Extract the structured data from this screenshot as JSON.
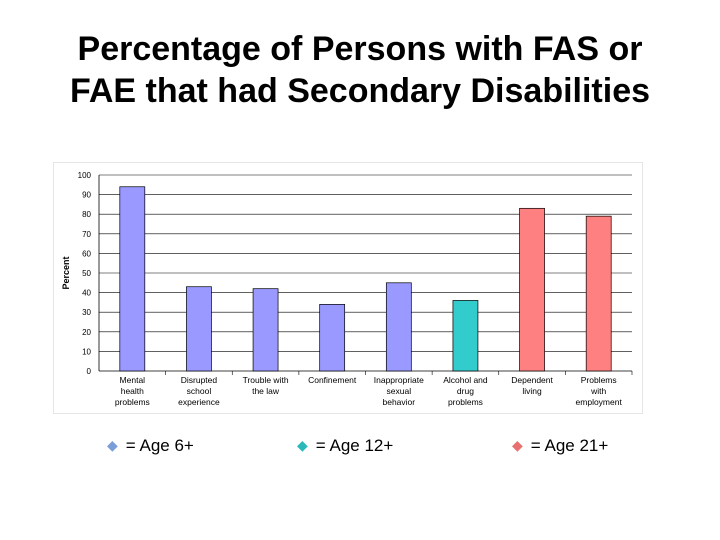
{
  "slide": {
    "title_line1": "Percentage of Persons with FAS or",
    "title_line2": "FAE that had Secondary Disabilities"
  },
  "chart_data": {
    "type": "bar",
    "title": "",
    "xlabel": "",
    "ylabel": "Percent",
    "ylim": [
      0,
      100
    ],
    "yticks": [
      0,
      10,
      20,
      30,
      40,
      50,
      60,
      70,
      80,
      90,
      100
    ],
    "grid": true,
    "categories": [
      [
        "Mental",
        "health",
        "problems"
      ],
      [
        "Disrupted",
        "school",
        "experience"
      ],
      [
        "Trouble with",
        "the law"
      ],
      [
        "Confinement"
      ],
      [
        "Inappropriate",
        "sexual",
        "behavior"
      ],
      [
        "Alcohol and",
        "drug",
        "problems"
      ],
      [
        "Dependent",
        "living"
      ],
      [
        "Problems",
        "with",
        "employment"
      ]
    ],
    "values": [
      94,
      43,
      42,
      34,
      45,
      36,
      83,
      79
    ],
    "age_group": [
      "Age 6+",
      "Age 6+",
      "Age 6+",
      "Age 6+",
      "Age 6+",
      "Age 12+",
      "Age 21+",
      "Age 21+"
    ]
  },
  "colors": {
    "age6": "#9999ff",
    "age12": "#33cccc",
    "age21": "#ff8080",
    "gridline": "#000000"
  },
  "legend": [
    {
      "group": "Age 6+",
      "label": "= Age 6+",
      "icon": "diamond-bullet-icon"
    },
    {
      "group": "Age 12+",
      "label": "= Age 12+",
      "icon": "diamond-bullet-icon"
    },
    {
      "group": "Age 21+",
      "label": "= Age 21+",
      "icon": "diamond-bullet-icon"
    }
  ]
}
